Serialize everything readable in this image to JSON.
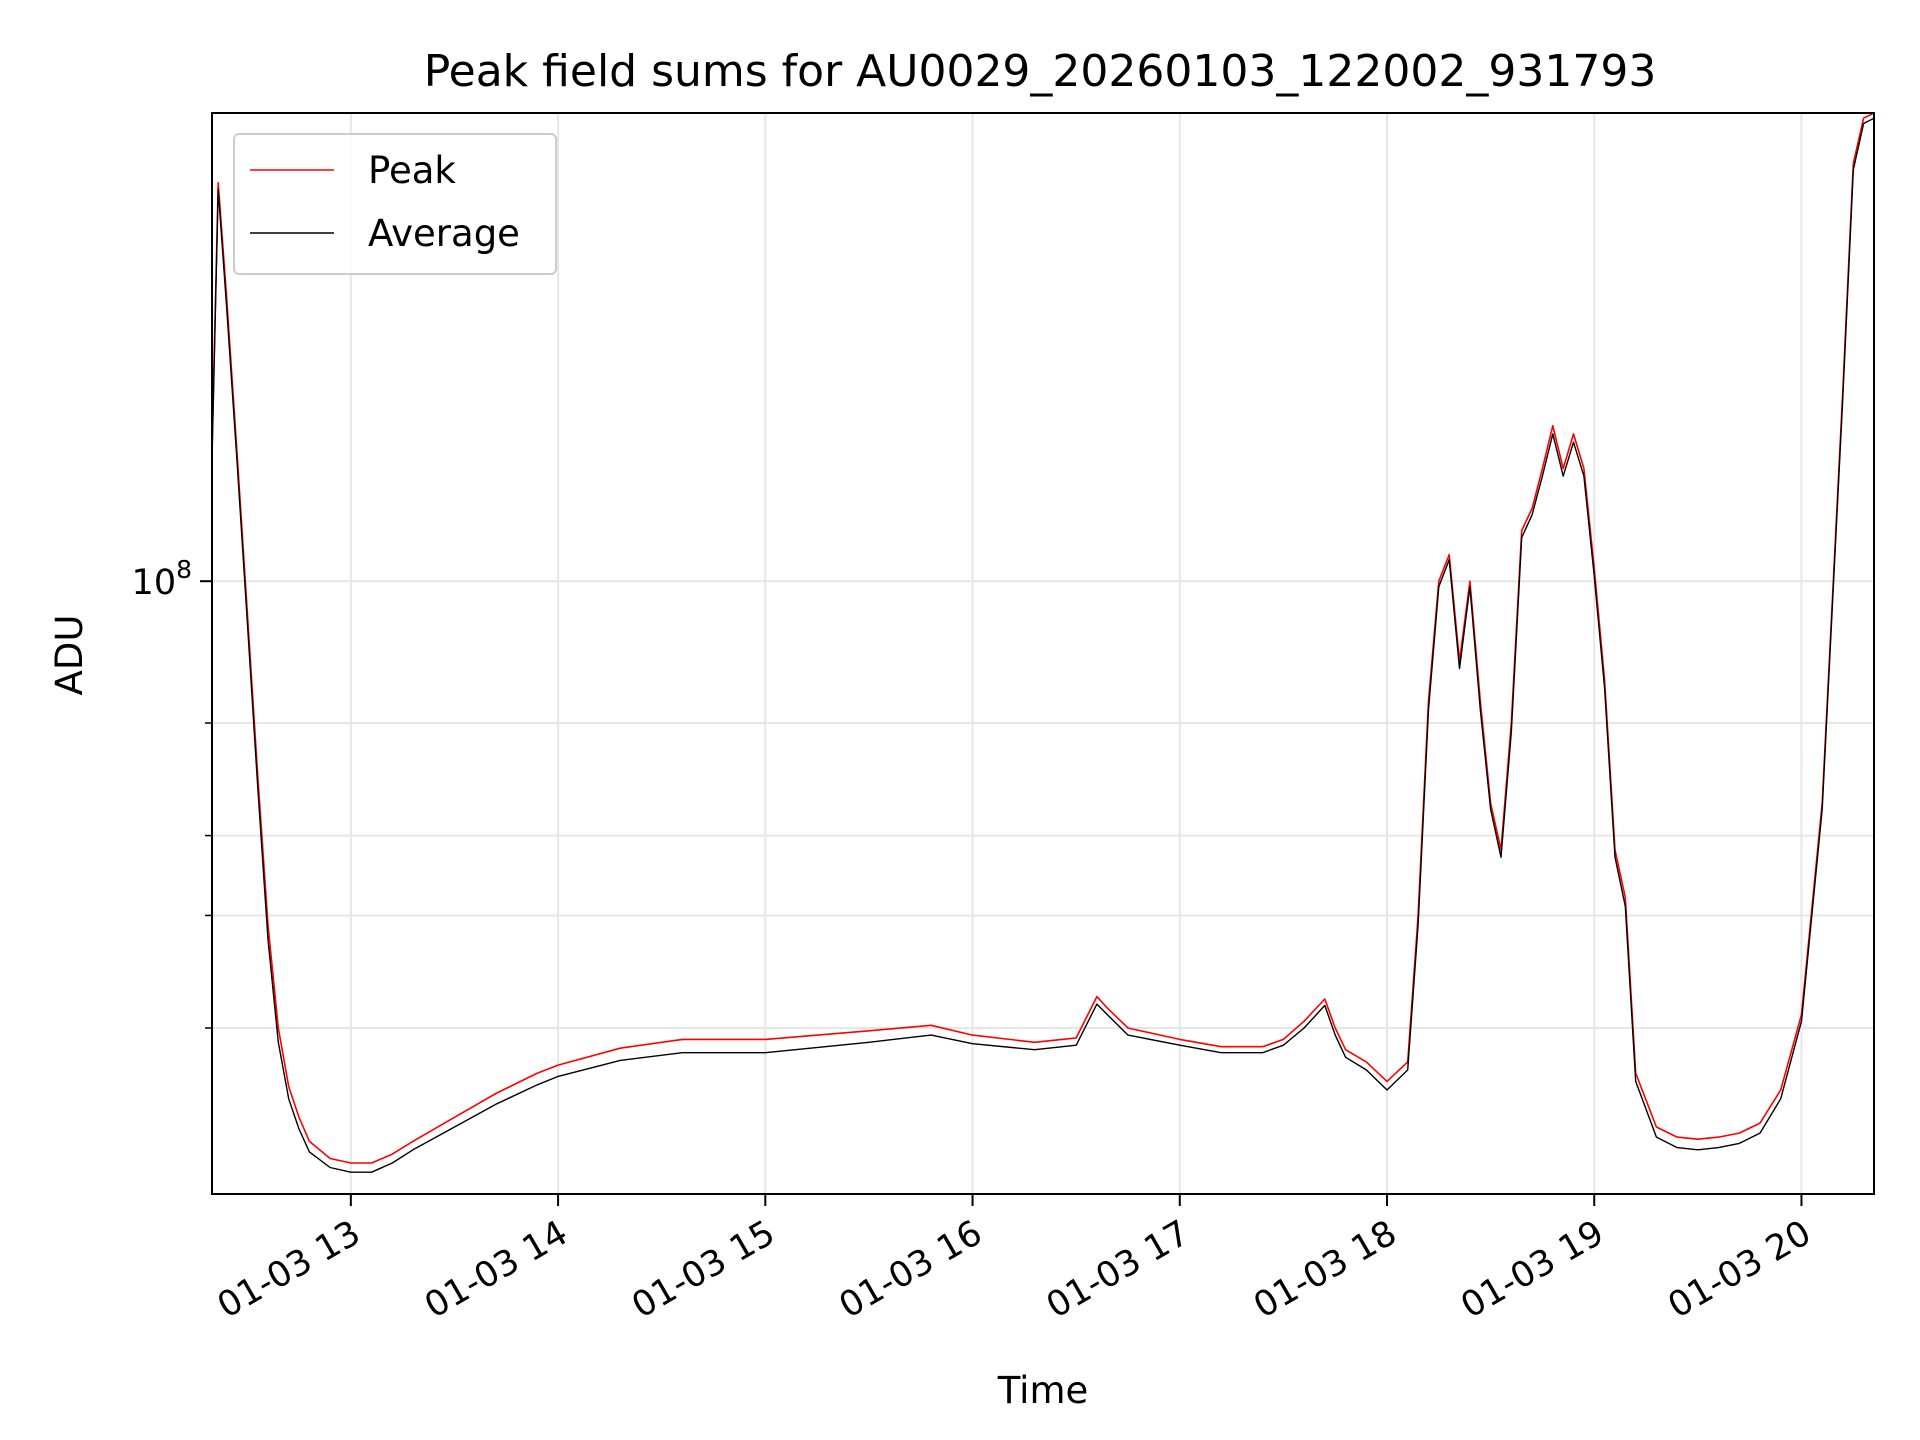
{
  "chart_data": {
    "type": "line",
    "title": "Peak field sums for AU0029_20260103_122002_931793",
    "xlabel": "Time",
    "ylabel": "ADU",
    "yscale": "log",
    "ylim": [
      11000000,
      540000000
    ],
    "xlim_hours": [
      12.33,
      20.35
    ],
    "x_tick_values": [
      13,
      14,
      15,
      16,
      17,
      18,
      19,
      20
    ],
    "x_tick_labels": [
      "01-03 13",
      "01-03 14",
      "01-03 15",
      "01-03 16",
      "01-03 17",
      "01-03 18",
      "01-03 19",
      "01-03 20"
    ],
    "y_tick_value": 100000000,
    "y_tick_label_base": "10",
    "y_tick_label_exp": "8",
    "y_minor_ticks": [
      20000000,
      30000000,
      40000000,
      60000000
    ],
    "grid": true,
    "legend_position": "upper-left",
    "series": [
      {
        "name": "Peak",
        "color": "#ff0000",
        "x": [
          12.33,
          12.36,
          12.4,
          12.45,
          12.5,
          12.55,
          12.6,
          12.65,
          12.7,
          12.75,
          12.8,
          12.9,
          13.0,
          13.1,
          13.2,
          13.3,
          13.5,
          13.7,
          13.9,
          14.0,
          14.3,
          14.6,
          15.0,
          15.5,
          15.8,
          16.0,
          16.3,
          16.5,
          16.6,
          16.65,
          16.75,
          17.0,
          17.2,
          17.4,
          17.5,
          17.6,
          17.7,
          17.75,
          17.8,
          17.9,
          18.0,
          18.1,
          18.15,
          18.2,
          18.25,
          18.3,
          18.35,
          18.4,
          18.45,
          18.5,
          18.55,
          18.6,
          18.65,
          18.7,
          18.75,
          18.8,
          18.85,
          18.9,
          18.95,
          19.0,
          19.05,
          19.1,
          19.15,
          19.2,
          19.3,
          19.4,
          19.5,
          19.6,
          19.7,
          19.8,
          19.9,
          20.0,
          20.1,
          20.15,
          20.2,
          20.25,
          20.3,
          20.35
        ],
        "y": [
          160000000,
          420000000,
          280000000,
          160000000,
          90000000,
          50000000,
          29000000,
          20000000,
          16200000,
          14500000,
          13300000,
          12500000,
          12300000,
          12300000,
          12700000,
          13300000,
          14500000,
          15800000,
          17000000,
          17500000,
          18600000,
          19200000,
          19200000,
          19800000,
          20200000,
          19500000,
          19000000,
          19300000,
          22400000,
          21500000,
          20000000,
          19200000,
          18700000,
          18700000,
          19200000,
          20500000,
          22200000,
          20000000,
          18500000,
          17700000,
          16500000,
          17700000,
          30000000,
          65000000,
          100000000,
          110000000,
          75000000,
          100000000,
          65000000,
          45000000,
          38000000,
          60000000,
          120000000,
          130000000,
          150000000,
          175000000,
          150000000,
          170000000,
          150000000,
          105000000,
          70000000,
          38000000,
          32000000,
          17000000,
          14000000,
          13500000,
          13400000,
          13500000,
          13700000,
          14200000,
          16000000,
          21000000,
          45000000,
          95000000,
          200000000,
          450000000,
          530000000,
          540000000
        ]
      },
      {
        "name": "Average",
        "color": "#000000",
        "x": [
          12.33,
          12.36,
          12.4,
          12.45,
          12.5,
          12.55,
          12.6,
          12.65,
          12.7,
          12.75,
          12.8,
          12.9,
          13.0,
          13.1,
          13.2,
          13.3,
          13.5,
          13.7,
          13.9,
          14.0,
          14.3,
          14.6,
          15.0,
          15.5,
          15.8,
          16.0,
          16.3,
          16.5,
          16.6,
          16.65,
          16.75,
          17.0,
          17.2,
          17.4,
          17.5,
          17.6,
          17.7,
          17.75,
          17.8,
          17.9,
          18.0,
          18.1,
          18.15,
          18.2,
          18.25,
          18.3,
          18.35,
          18.4,
          18.45,
          18.5,
          18.55,
          18.6,
          18.65,
          18.7,
          18.75,
          18.8,
          18.85,
          18.9,
          18.95,
          19.0,
          19.05,
          19.1,
          19.15,
          19.2,
          19.3,
          19.4,
          19.5,
          19.6,
          19.7,
          19.8,
          19.9,
          20.0,
          20.1,
          20.15,
          20.2,
          20.25,
          20.3,
          20.35
        ],
        "y": [
          155000000,
          410000000,
          270000000,
          155000000,
          87000000,
          48000000,
          27500000,
          19000000,
          15500000,
          13900000,
          12800000,
          12100000,
          11900000,
          11900000,
          12300000,
          12900000,
          14000000,
          15200000,
          16300000,
          16800000,
          17800000,
          18300000,
          18300000,
          19000000,
          19500000,
          18900000,
          18500000,
          18800000,
          21800000,
          21000000,
          19500000,
          18800000,
          18300000,
          18300000,
          18800000,
          20000000,
          21700000,
          19500000,
          18000000,
          17200000,
          16000000,
          17200000,
          29000000,
          63000000,
          98000000,
          108000000,
          73000000,
          98000000,
          63000000,
          44000000,
          37000000,
          58000000,
          117000000,
          127000000,
          146000000,
          170000000,
          146000000,
          165000000,
          146000000,
          102000000,
          68000000,
          37000000,
          31000000,
          16500000,
          13500000,
          13000000,
          12900000,
          13000000,
          13200000,
          13700000,
          15500000,
          20500000,
          44000000,
          93000000,
          195000000,
          440000000,
          520000000,
          530000000
        ]
      }
    ]
  }
}
